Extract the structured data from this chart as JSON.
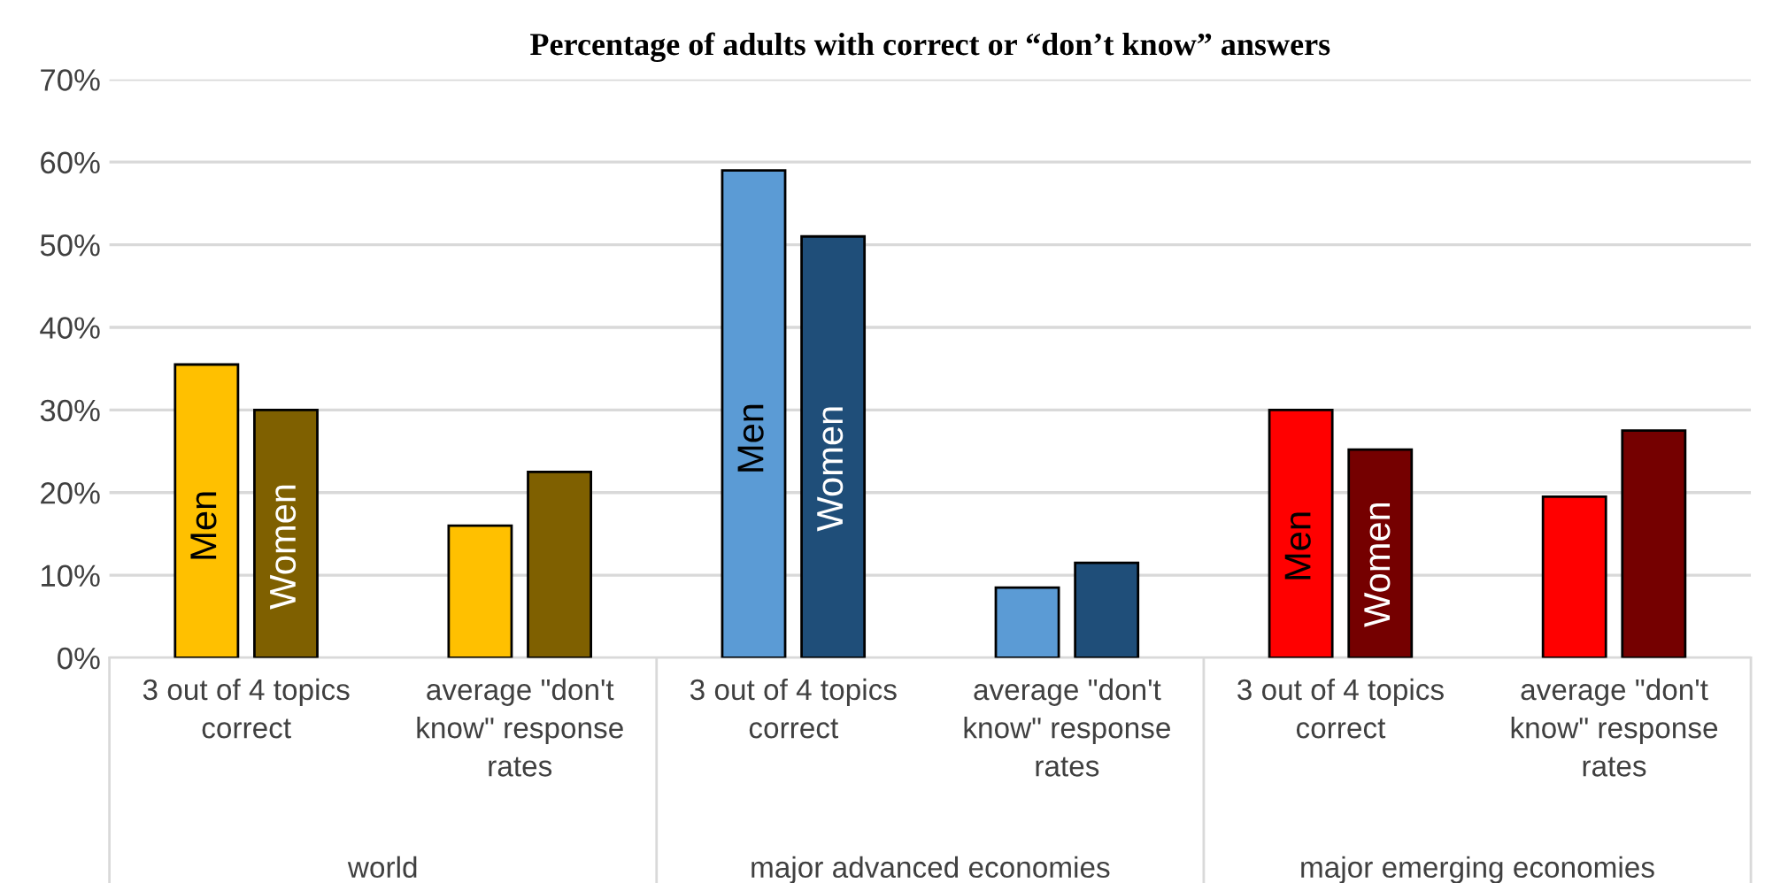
{
  "chart_data": {
    "type": "bar",
    "title": "Percentage of adults with correct or “don’t know” answers",
    "categories": [
      "3 out of 4 topics correct",
      "average \"don't know\" response rates",
      "3 out of 4 topics correct",
      "average \"don't know\" response rates",
      "3 out of 4 topics correct",
      "average \"don't know\" response rates"
    ],
    "series": [
      {
        "name": "Men",
        "colors": [
          "#ffc000",
          "#ffc000",
          "#5b9bd5",
          "#5b9bd5",
          "#ff0000",
          "#ff0000"
        ],
        "values": [
          35.5,
          16,
          59,
          8.5,
          30,
          19.5
        ]
      },
      {
        "name": "Women",
        "colors": [
          "#7f6000",
          "#7f6000",
          "#1f4e79",
          "#1f4e79",
          "#750000",
          "#750000"
        ],
        "values": [
          30,
          22.5,
          51,
          11.5,
          25.2,
          27.5
        ]
      }
    ],
    "annotations": [
      "world",
      "major advanced economies",
      "major emerging economies"
    ],
    "ylim": [
      0,
      70
    ],
    "yticks": [
      {
        "value": 0,
        "label": "0%"
      },
      {
        "value": 10,
        "label": "10%"
      },
      {
        "value": 20,
        "label": "20%"
      },
      {
        "value": 30,
        "label": "30%"
      },
      {
        "value": 40,
        "label": "40%"
      },
      {
        "value": 50,
        "label": "50%"
      },
      {
        "value": 60,
        "label": "60%"
      },
      {
        "value": 70,
        "label": "70%"
      }
    ],
    "grid": "y",
    "legend": false
  }
}
